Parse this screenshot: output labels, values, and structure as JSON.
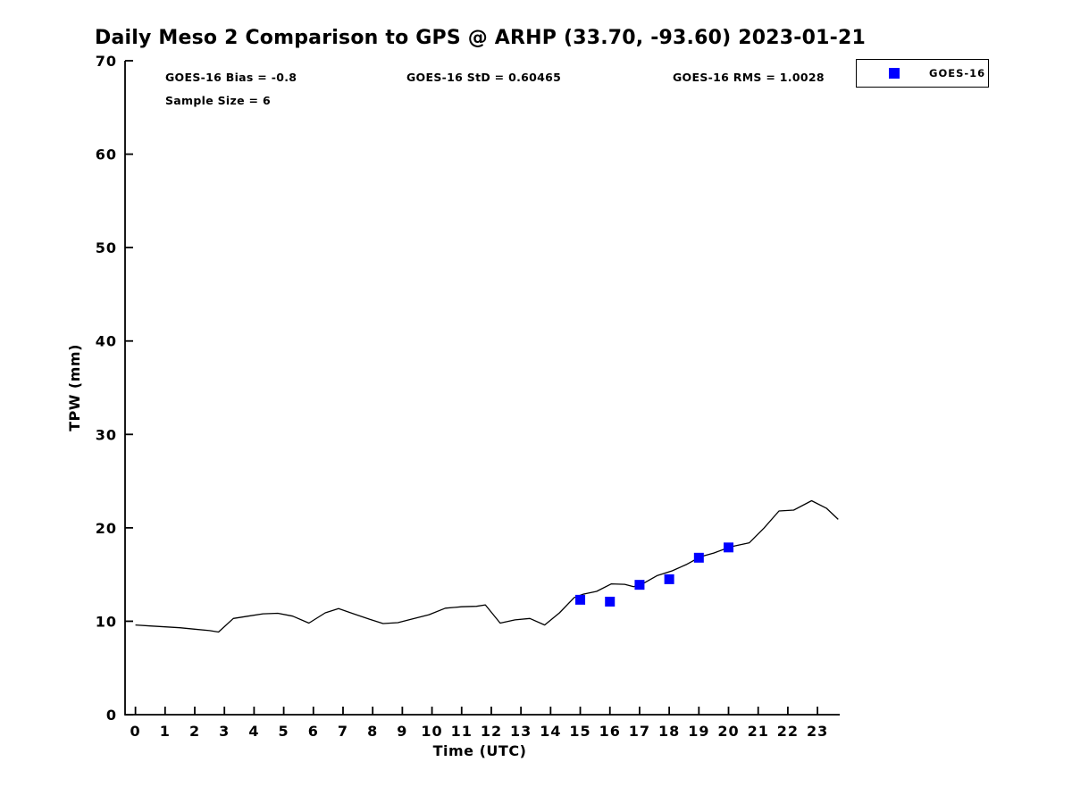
{
  "title": "Daily Meso 2 Comparison to GPS @ ARHP (33.70, -93.60) 2023-01-21",
  "stats": {
    "bias_text": "GOES-16 Bias = -0.8",
    "std_text": "GOES-16 StD = 0.60465",
    "rms_text": "GOES-16 RMS = 1.0028",
    "sample_text": "Sample Size = 6"
  },
  "legend": {
    "label": "GOES-16",
    "marker_shape": "square",
    "marker_color": "#0000ff",
    "position": "top-right-outside"
  },
  "colors": {
    "line": "#000000",
    "marker": "#0000ff",
    "axis": "#000000",
    "background": "#ffffff"
  },
  "chart_data": {
    "type": "line",
    "title": "Daily Meso 2 Comparison to GPS @ ARHP (33.70, -93.60) 2023-01-21",
    "xlabel": "Time (UTC)",
    "ylabel": "TPW (mm)",
    "xlim": [
      -0.35,
      23.75
    ],
    "ylim": [
      0,
      70
    ],
    "xticks": [
      0,
      1,
      2,
      3,
      4,
      5,
      6,
      7,
      8,
      9,
      10,
      11,
      12,
      13,
      14,
      15,
      16,
      17,
      18,
      19,
      20,
      21,
      22,
      23
    ],
    "yticks": [
      0,
      10,
      20,
      30,
      40,
      50,
      60,
      70
    ],
    "grid": false,
    "legend_position": "top-right-outside",
    "stats": {
      "goes16_bias": -0.8,
      "goes16_std": 0.60465,
      "goes16_rms": 1.0028,
      "sample_size": 6
    },
    "series": [
      {
        "name": "GPS",
        "style": "line",
        "color": "#000000",
        "points": [
          [
            0.0,
            9.6
          ],
          [
            0.5,
            9.5
          ],
          [
            1.0,
            9.4
          ],
          [
            1.5,
            9.3
          ],
          [
            2.0,
            9.15
          ],
          [
            2.5,
            9.0
          ],
          [
            2.8,
            8.85
          ],
          [
            3.3,
            10.3
          ],
          [
            3.8,
            10.55
          ],
          [
            4.3,
            10.8
          ],
          [
            4.8,
            10.85
          ],
          [
            5.3,
            10.55
          ],
          [
            5.85,
            9.8
          ],
          [
            6.4,
            10.9
          ],
          [
            6.85,
            11.35
          ],
          [
            7.4,
            10.75
          ],
          [
            7.9,
            10.2
          ],
          [
            8.35,
            9.75
          ],
          [
            8.85,
            9.85
          ],
          [
            9.35,
            10.25
          ],
          [
            9.9,
            10.7
          ],
          [
            10.45,
            11.4
          ],
          [
            11.0,
            11.55
          ],
          [
            11.5,
            11.6
          ],
          [
            11.8,
            11.75
          ],
          [
            12.3,
            9.8
          ],
          [
            12.8,
            10.15
          ],
          [
            13.3,
            10.3
          ],
          [
            13.8,
            9.6
          ],
          [
            14.3,
            10.9
          ],
          [
            14.8,
            12.55
          ],
          [
            15.1,
            12.9
          ],
          [
            15.55,
            13.2
          ],
          [
            16.05,
            14.0
          ],
          [
            16.5,
            13.95
          ],
          [
            16.8,
            13.7
          ],
          [
            17.1,
            14.0
          ],
          [
            17.6,
            14.9
          ],
          [
            18.1,
            15.4
          ],
          [
            18.6,
            16.1
          ],
          [
            19.05,
            16.9
          ],
          [
            19.5,
            17.3
          ],
          [
            20.05,
            17.95
          ],
          [
            20.7,
            18.4
          ],
          [
            21.2,
            20.0
          ],
          [
            21.7,
            21.8
          ],
          [
            22.2,
            21.9
          ],
          [
            22.8,
            22.9
          ],
          [
            23.3,
            22.1
          ],
          [
            23.7,
            20.9
          ]
        ]
      },
      {
        "name": "GOES-16",
        "style": "scatter",
        "marker": "square",
        "color": "#0000ff",
        "points": [
          [
            15,
            12.3
          ],
          [
            16,
            12.1
          ],
          [
            17,
            13.9
          ],
          [
            18,
            14.5
          ],
          [
            19,
            16.8
          ],
          [
            20,
            17.9
          ]
        ]
      }
    ]
  }
}
